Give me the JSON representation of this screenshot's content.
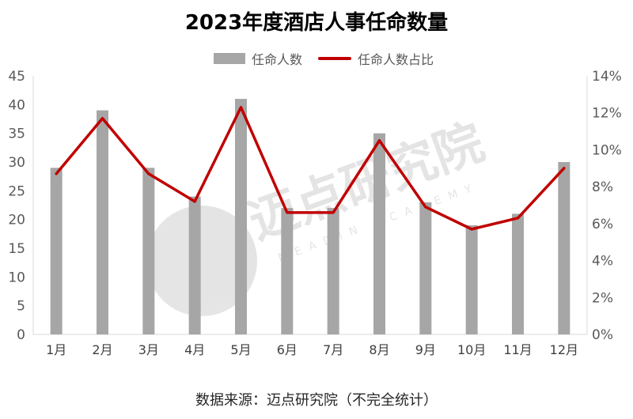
{
  "chart_data": {
    "type": "bar+line",
    "title": "2023年度酒店人事任命数量",
    "categories": [
      "1月",
      "2月",
      "3月",
      "4月",
      "5月",
      "6月",
      "7月",
      "8月",
      "9月",
      "10月",
      "11月",
      "12月"
    ],
    "series": [
      {
        "name": "任命人数",
        "type": "bar",
        "axis": "left",
        "color": "#a6a6a6",
        "values": [
          29,
          39,
          29,
          24,
          41,
          22,
          22,
          35,
          23,
          19,
          21,
          30
        ]
      },
      {
        "name": "任命人数占比",
        "type": "line",
        "axis": "right",
        "color": "#c00000",
        "values": [
          8.7,
          11.7,
          8.7,
          7.2,
          12.3,
          6.6,
          6.6,
          10.5,
          6.9,
          5.7,
          6.3,
          9.0
        ]
      }
    ],
    "y_left": {
      "ylim": [
        0,
        45
      ],
      "ticks": [
        0,
        5,
        10,
        15,
        20,
        25,
        30,
        35,
        40,
        45
      ]
    },
    "y_right": {
      "ylim": [
        0,
        14
      ],
      "ticks": [
        "0%",
        "2%",
        "4%",
        "6%",
        "8%",
        "10%",
        "12%",
        "14%"
      ]
    },
    "legend_position": "top-center",
    "grid": false
  },
  "watermark": {
    "text_cn": "迈点研究院",
    "text_en": "MEADIN ACADEMY"
  },
  "source": "数据来源：迈点研究院（不完全统计）"
}
